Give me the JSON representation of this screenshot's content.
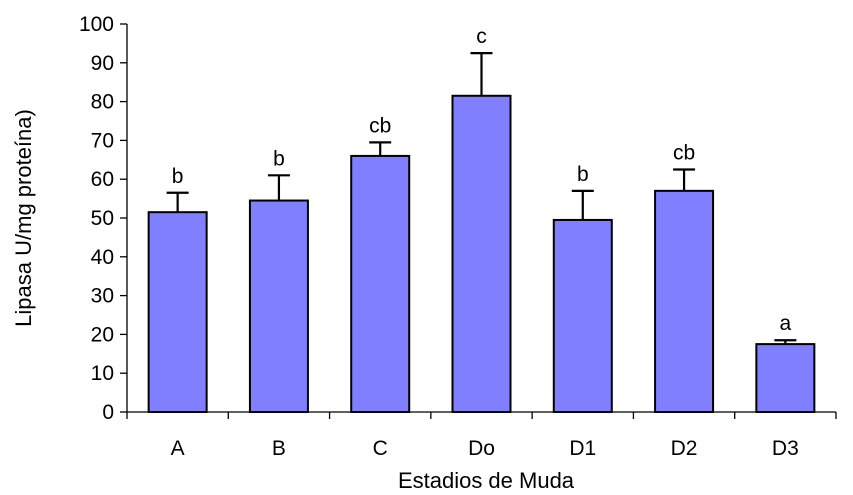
{
  "chart_data": {
    "type": "bar",
    "title": "",
    "xlabel": "Estadios de Muda",
    "ylabel": "Lipasa U/mg proteína)",
    "categories": [
      "A",
      "B",
      "C",
      "Do",
      "D1",
      "D2",
      "D3"
    ],
    "values": [
      51.5,
      54.5,
      66,
      81.5,
      49.5,
      57,
      17.5
    ],
    "error": [
      5,
      6.5,
      3.5,
      11,
      7.5,
      5.5,
      1
    ],
    "significance": [
      "b",
      "b",
      "cb",
      "c",
      "b",
      "cb",
      "a"
    ],
    "ylim": [
      0,
      100
    ],
    "yticks": [
      0,
      10,
      20,
      30,
      40,
      50,
      60,
      70,
      80,
      90,
      100
    ],
    "grid": false,
    "legend": "none",
    "colors": {
      "bar_fill": "#7F7FFF",
      "bar_stroke": "#000000",
      "axis": "#000000"
    }
  }
}
